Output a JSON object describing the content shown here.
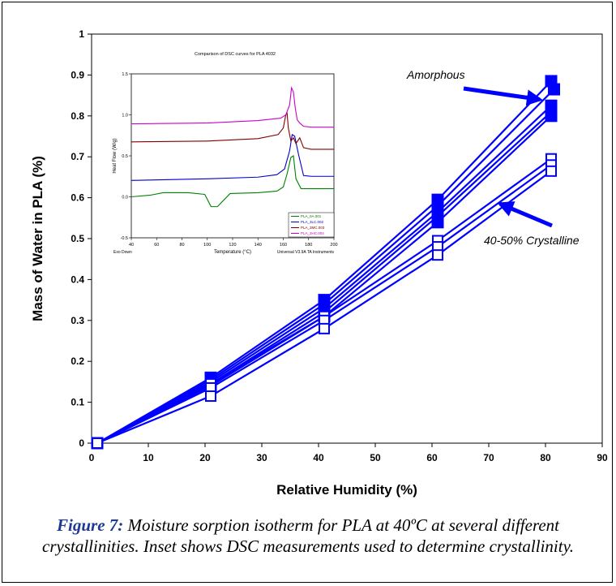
{
  "chart_data": [
    {
      "type": "scatter",
      "xlabel": "Relative Humidity (%)",
      "ylabel": "Mass of Water in PLA (%)",
      "xlim": [
        0,
        90
      ],
      "ylim": [
        0,
        1
      ],
      "x_ticks": [
        "0",
        "10",
        "20",
        "30",
        "40",
        "50",
        "60",
        "70",
        "80",
        "90"
      ],
      "y_ticks": [
        "0",
        "0.1",
        "0.2",
        "0.3",
        "0.4",
        "0.5",
        "0.6",
        "0.7",
        "0.8",
        "0.9",
        "1"
      ],
      "grid": false,
      "color": "#0000ff",
      "series": [
        {
          "marker": "filled-square",
          "x": [
            1,
            21,
            41,
            61,
            81
          ],
          "y": [
            0,
            0.16,
            0.35,
            0.595,
            0.885
          ]
        },
        {
          "marker": "filled-square",
          "x": [
            1,
            21,
            41,
            61,
            81.5
          ],
          "y": [
            0,
            0.155,
            0.34,
            0.58,
            0.865
          ]
        },
        {
          "marker": "filled-square",
          "x": [
            1,
            21,
            41,
            61,
            81
          ],
          "y": [
            0,
            0.15,
            0.33,
            0.565,
            0.825
          ]
        },
        {
          "marker": "filled-square",
          "x": [
            1,
            21,
            41,
            61,
            81
          ],
          "y": [
            0,
            0.145,
            0.32,
            0.555,
            0.81
          ]
        },
        {
          "marker": "filled-square",
          "x": [
            1,
            21,
            41,
            61,
            81
          ],
          "y": [
            0,
            0.14,
            0.31,
            0.54,
            0.8
          ]
        },
        {
          "marker": "open-square",
          "x": [
            1,
            21,
            41,
            61,
            81
          ],
          "y": [
            0,
            0.145,
            0.31,
            0.495,
            0.695
          ]
        },
        {
          "marker": "open-square",
          "x": [
            1,
            21,
            41,
            61,
            81
          ],
          "y": [
            0,
            0.135,
            0.3,
            0.48,
            0.68
          ]
        },
        {
          "marker": "open-square",
          "x": [
            1,
            21,
            41,
            61,
            81
          ],
          "y": [
            0,
            0.115,
            0.28,
            0.46,
            0.665
          ]
        }
      ],
      "annotations": [
        {
          "text": "Amorphous",
          "arrow_to": [
            79,
            0.84
          ]
        },
        {
          "text": "40-50% Crystalline",
          "arrow_to": [
            72,
            0.585
          ]
        }
      ]
    },
    {
      "type": "line",
      "title": "Comparison of DSC curves for PLA 4032",
      "xlabel": "Temperature (°C)",
      "ylabel": "Heat Flow (W/g)",
      "xlim": [
        40,
        200
      ],
      "ylim": [
        -0.5,
        1.5
      ],
      "x_ticks": [
        "40",
        "60",
        "80",
        "100",
        "120",
        "140",
        "160",
        "180",
        "200"
      ],
      "y_ticks": [
        "-0.5",
        "0.0",
        "0.5",
        "1.0",
        "1.5"
      ],
      "footer_left": "Exo Down",
      "footer_right": "Universal V3.9A TA Instruments",
      "series": [
        {
          "name": "PLA_0A.001",
          "color": "#008000",
          "x": [
            40,
            55,
            65,
            85,
            98,
            103,
            108,
            118,
            140,
            155,
            160,
            163,
            166,
            168,
            170,
            174,
            180,
            198,
            200
          ],
          "y": [
            0.0,
            0.02,
            0.05,
            0.05,
            0.03,
            -0.12,
            -0.12,
            0.04,
            0.05,
            0.07,
            0.12,
            0.28,
            0.48,
            0.5,
            0.22,
            0.1,
            0.1,
            0.1,
            0.1
          ]
        },
        {
          "name": "PLA_3LC.002",
          "color": "#0000cc",
          "x": [
            40,
            100,
            140,
            155,
            161,
            165,
            167,
            169,
            172,
            176,
            182,
            200
          ],
          "y": [
            0.2,
            0.22,
            0.24,
            0.27,
            0.34,
            0.56,
            0.76,
            0.74,
            0.52,
            0.26,
            0.25,
            0.25
          ]
        },
        {
          "name": "PLA_3MC.003",
          "color": "#800000",
          "x": [
            40,
            100,
            140,
            156,
            160,
            162,
            163,
            164,
            166,
            168,
            170,
            173,
            176,
            182,
            200
          ],
          "y": [
            0.67,
            0.68,
            0.71,
            0.76,
            0.84,
            1.0,
            1.02,
            0.84,
            0.68,
            0.72,
            0.65,
            0.72,
            0.6,
            0.58,
            0.58
          ]
        },
        {
          "name": "PLA_3HC.004",
          "color": "#cc00cc",
          "x": [
            40,
            100,
            140,
            158,
            162,
            165,
            166.5,
            168,
            169.5,
            171,
            173,
            176,
            182,
            200
          ],
          "y": [
            0.89,
            0.9,
            0.93,
            0.96,
            1.0,
            1.12,
            1.33,
            1.28,
            1.08,
            0.94,
            0.9,
            0.86,
            0.85,
            0.85
          ]
        }
      ]
    }
  ],
  "caption": {
    "lead": "Figure 7:",
    "text": " Moisture sorption isotherm for PLA at 40ºC at several different crystallinities.  Inset shows DSC measurements used to determine crystallinity."
  }
}
